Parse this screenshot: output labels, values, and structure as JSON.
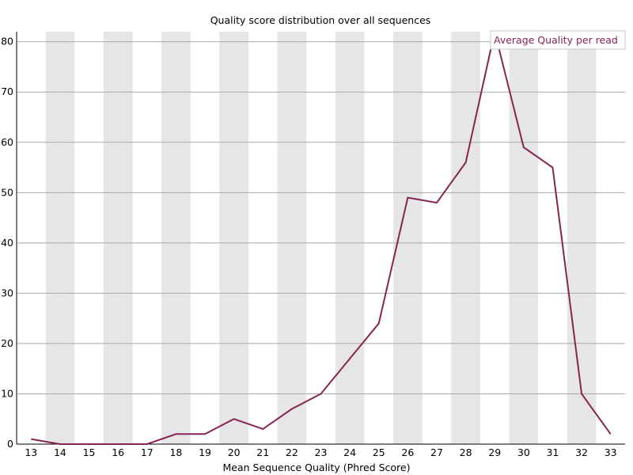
{
  "chart_data": {
    "type": "line",
    "title": "Quality score distribution over all sequences",
    "xlabel": "Mean Sequence Quality (Phred Score)",
    "ylabel": "",
    "x": [
      13,
      14,
      15,
      16,
      17,
      18,
      19,
      20,
      21,
      22,
      23,
      24,
      25,
      26,
      27,
      28,
      29,
      30,
      31,
      32,
      33
    ],
    "xlim": [
      12.5,
      33.5
    ],
    "ylim": [
      0,
      82
    ],
    "yticks": [
      0,
      10,
      20,
      30,
      40,
      50,
      60,
      70,
      80
    ],
    "xticks": [
      "13",
      "14",
      "15",
      "16",
      "17",
      "18",
      "19",
      "20",
      "21",
      "22",
      "23",
      "24",
      "25",
      "26",
      "27",
      "28",
      "29",
      "30",
      "31",
      "32",
      "33"
    ],
    "grid": true,
    "alternating_column_bands": true,
    "legend_position": "top-right",
    "series": [
      {
        "name": "Average Quality per read",
        "color": "#862454",
        "values": [
          1,
          0,
          0,
          0,
          0,
          2,
          2,
          5,
          3,
          7,
          10,
          17,
          24,
          49,
          48,
          56,
          82,
          59,
          55,
          10,
          2
        ]
      }
    ],
    "colors": {
      "band": "#e6e6e6",
      "gridline": "#a9a9a9",
      "axis": "#000000"
    }
  }
}
